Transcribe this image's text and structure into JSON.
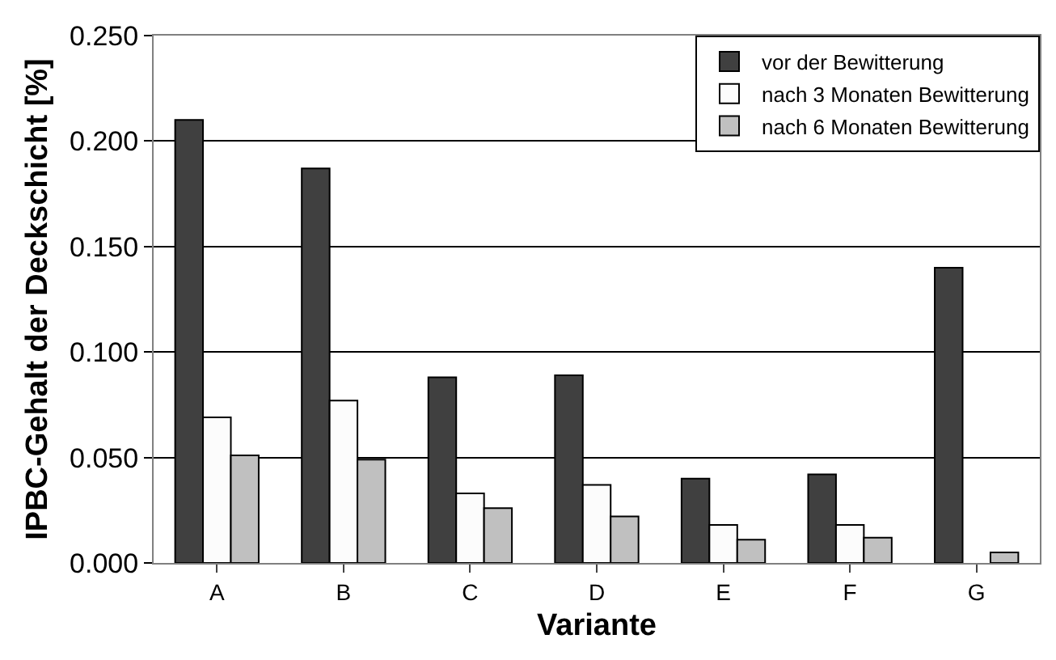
{
  "chart_data": {
    "type": "bar",
    "xlabel": "Variante",
    "ylabel": "IPBC-Gehalt der Deckschicht [%]",
    "categories": [
      "A",
      "B",
      "C",
      "D",
      "E",
      "F",
      "G"
    ],
    "series": [
      {
        "name": "vor der Bewitterung",
        "color": "#404040",
        "values": [
          0.21,
          0.187,
          0.088,
          0.089,
          0.04,
          0.042,
          0.14
        ]
      },
      {
        "name": "nach 3 Monaten Bewitterung",
        "color": "#fcfcfc",
        "values": [
          0.069,
          0.077,
          0.033,
          0.037,
          0.018,
          0.018,
          null
        ]
      },
      {
        "name": "nach 6 Monaten Bewitterung",
        "color": "#c0c0c0",
        "values": [
          0.051,
          0.049,
          0.026,
          0.022,
          0.011,
          0.012,
          0.005
        ]
      }
    ],
    "ylim": [
      0,
      0.25
    ],
    "yticks": [
      {
        "value": 0,
        "label": "0.000"
      },
      {
        "value": 0.05,
        "label": "0.050"
      },
      {
        "value": 0.1,
        "label": "0.100"
      },
      {
        "value": 0.15,
        "label": "0.150"
      },
      {
        "value": 0.2,
        "label": "0.200"
      },
      {
        "value": 0.25,
        "label": "0.250"
      }
    ],
    "grid": "y",
    "legend": "top right"
  }
}
